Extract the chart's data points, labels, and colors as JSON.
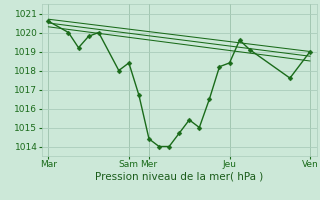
{
  "bg_color": "#cce8d8",
  "grid_color": "#aaccbb",
  "line_color": "#1a6b1a",
  "marker_color": "#1a6b1a",
  "xlabel": "Pression niveau de la mer( hPa )",
  "ylim": [
    1013.5,
    1021.5
  ],
  "yticks": [
    1014,
    1015,
    1016,
    1017,
    1018,
    1019,
    1020,
    1021
  ],
  "xtick_labels": [
    "Mar",
    "Sam",
    "Mer",
    "Jeu",
    "Ven"
  ],
  "xtick_positions": [
    0,
    48,
    60,
    108,
    156
  ],
  "main_x": [
    0,
    12,
    18,
    24,
    30,
    42,
    48,
    54,
    60,
    66,
    72,
    78,
    84,
    90,
    96,
    102,
    108,
    114,
    120,
    144,
    156
  ],
  "main_series": [
    1020.6,
    1020.0,
    1019.2,
    1019.8,
    1020.0,
    1018.0,
    1018.4,
    1016.7,
    1014.4,
    1014.0,
    1014.0,
    1014.7,
    1015.4,
    1015.0,
    1016.5,
    1018.2,
    1018.4,
    1019.6,
    1019.1,
    1017.6,
    1019.0
  ],
  "trend_lines": [
    [
      1020.7,
      1019.0
    ],
    [
      1020.5,
      1018.75
    ],
    [
      1020.3,
      1018.5
    ]
  ],
  "vline_positions": [
    0,
    48,
    60,
    108,
    156
  ],
  "xlabel_color": "#1a5c1a",
  "xlabel_fontsize": 7.5,
  "tick_fontsize": 6.5,
  "linewidth": 1.0,
  "markersize": 2.5,
  "xlim": [
    -4,
    160
  ]
}
